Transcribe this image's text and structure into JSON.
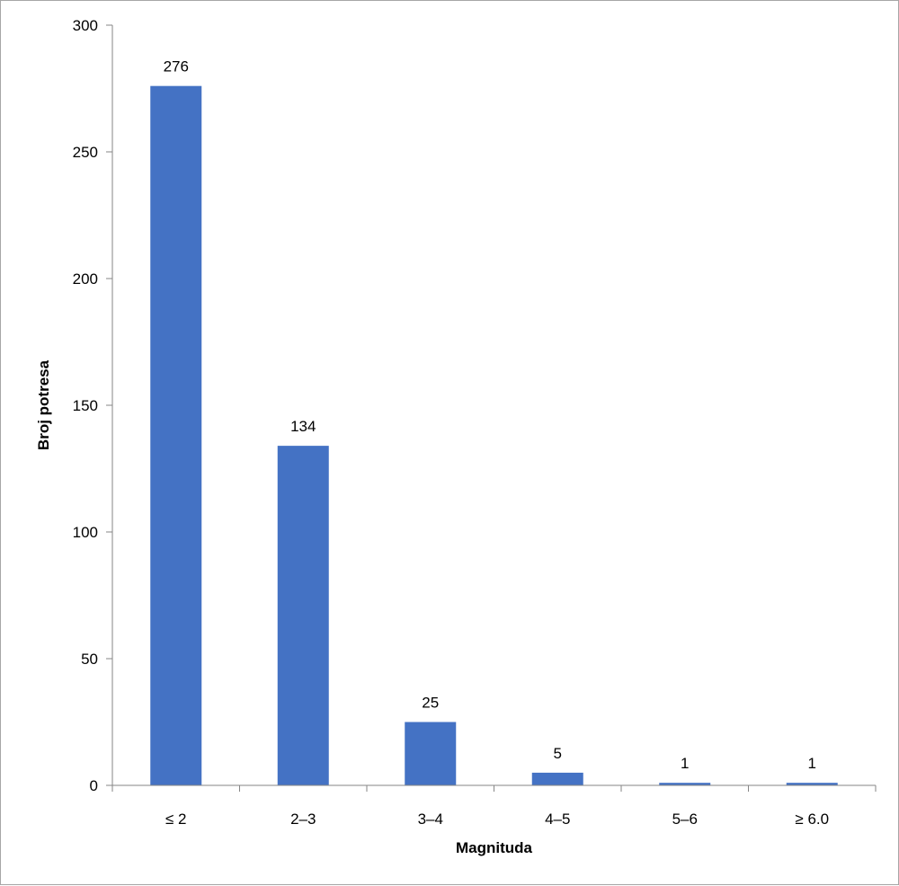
{
  "chart_data": {
    "type": "bar",
    "title": "",
    "xlabel": "Magnituda",
    "ylabel": "Broj potresa",
    "categories": [
      "≤ 2",
      "2–3",
      "3–4",
      "4–5",
      "5–6",
      "≥ 6.0"
    ],
    "values": [
      276,
      134,
      25,
      5,
      1,
      1
    ],
    "data_labels": [
      "276",
      "134",
      "25",
      "5",
      "1",
      "1"
    ],
    "ylim": [
      0,
      300
    ],
    "yticks": [
      0,
      50,
      100,
      150,
      200,
      250,
      300
    ],
    "grid": false,
    "legend": "none",
    "bar_color": "#4472C4",
    "axis_color": "#868686"
  }
}
